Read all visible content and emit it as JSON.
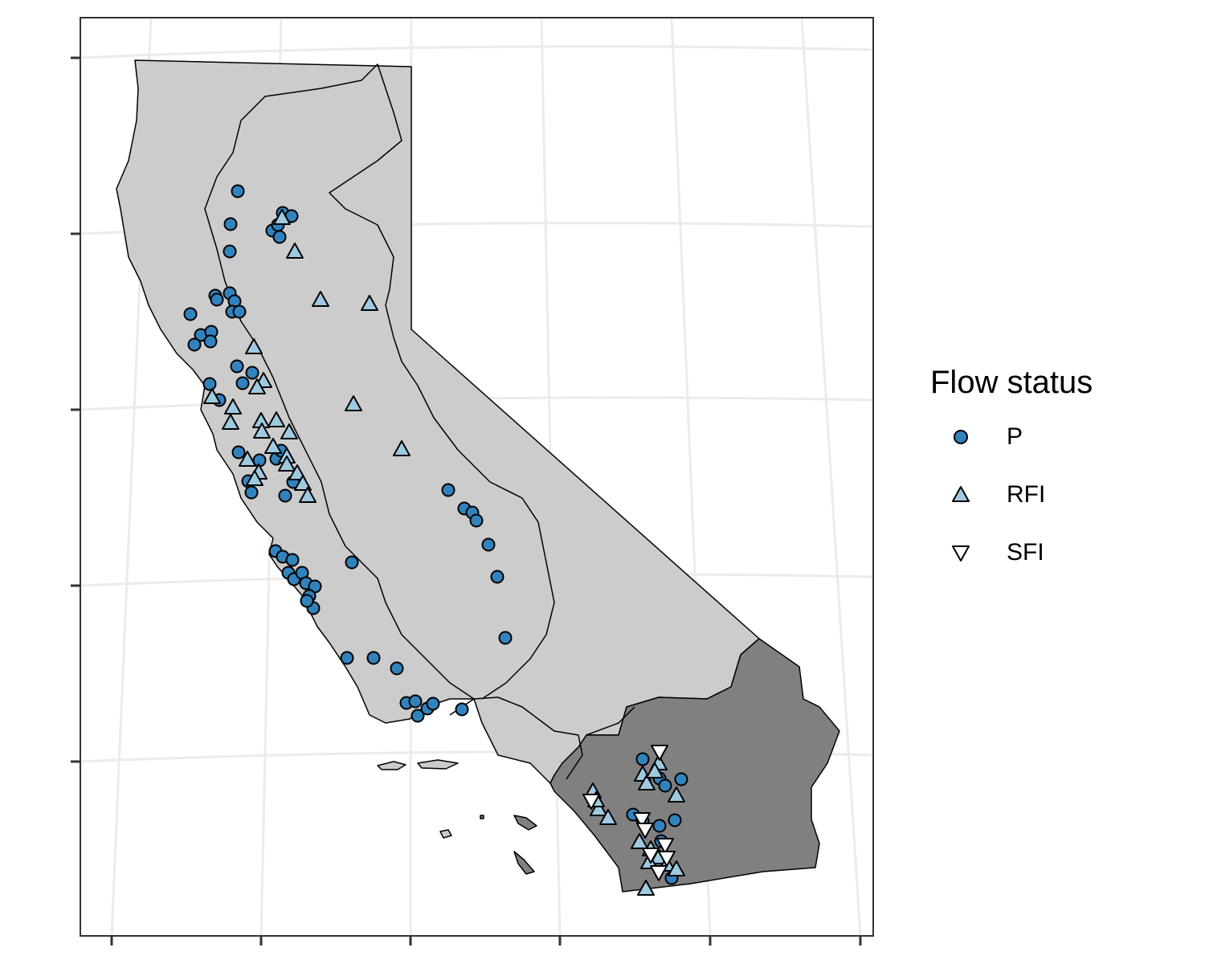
{
  "legend": {
    "title": "Flow status",
    "items": [
      {
        "label": "P",
        "shape": "circle",
        "fill": "#3182bd"
      },
      {
        "label": "RFI",
        "shape": "triangle-up",
        "fill": "#9ecae1"
      },
      {
        "label": "SFI",
        "shape": "triangle-down",
        "fill": "#ffffff"
      }
    ]
  },
  "colors": {
    "region_light": "#cccccc",
    "region_dark": "#808080",
    "graticule": "#ebebeb",
    "panel_border": "#333333"
  }
}
